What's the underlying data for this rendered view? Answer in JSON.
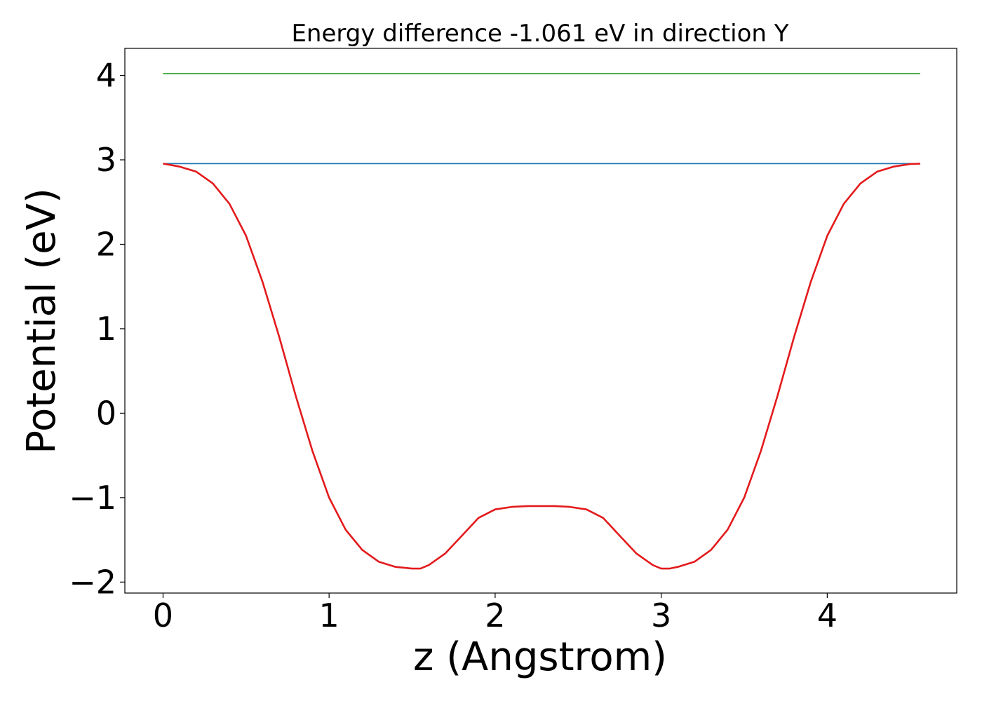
{
  "chart_data": {
    "type": "line",
    "title": "Energy difference -1.061 eV in direction Y",
    "xlabel": "z (Angstrom)",
    "ylabel": "Potential (eV)",
    "xlim": [
      -0.23,
      4.78
    ],
    "ylim": [
      -2.13,
      4.32
    ],
    "xticks": [
      0,
      1,
      2,
      3,
      4
    ],
    "xtick_labels": [
      "0",
      "1",
      "2",
      "3",
      "4"
    ],
    "yticks": [
      -2,
      -1,
      0,
      1,
      2,
      3,
      4
    ],
    "ytick_labels": [
      "−2",
      "−1",
      "0",
      "1",
      "2",
      "3",
      "4"
    ],
    "grid": false,
    "series": [
      {
        "color": "#2ca02c",
        "x": [
          0,
          4.56
        ],
        "y": [
          4.02,
          4.02
        ]
      },
      {
        "color": "#1f77b4",
        "x": [
          0,
          4.56
        ],
        "y": [
          2.955,
          2.955
        ]
      },
      {
        "color": "#e31a1c",
        "x": [
          0,
          0.1,
          0.2,
          0.3,
          0.4,
          0.5,
          0.6,
          0.7,
          0.8,
          0.9,
          1.0,
          1.1,
          1.2,
          1.3,
          1.4,
          1.5,
          1.55,
          1.6,
          1.7,
          1.8,
          1.9,
          2.0,
          2.1,
          2.2,
          2.28,
          2.36,
          2.45,
          2.55,
          2.65,
          2.75,
          2.85,
          2.95,
          3.0,
          3.05,
          3.1,
          3.2,
          3.3,
          3.4,
          3.5,
          3.6,
          3.7,
          3.8,
          3.9,
          4.0,
          4.1,
          4.2,
          4.3,
          4.4,
          4.5,
          4.56
        ],
        "y": [
          2.955,
          2.92,
          2.86,
          2.72,
          2.48,
          2.1,
          1.55,
          0.9,
          0.2,
          -0.45,
          -1.0,
          -1.38,
          -1.62,
          -1.76,
          -1.82,
          -1.84,
          -1.84,
          -1.8,
          -1.66,
          -1.45,
          -1.24,
          -1.14,
          -1.11,
          -1.1,
          -1.1,
          -1.1,
          -1.11,
          -1.14,
          -1.24,
          -1.45,
          -1.66,
          -1.8,
          -1.84,
          -1.84,
          -1.82,
          -1.76,
          -1.62,
          -1.38,
          -1.0,
          -0.45,
          0.2,
          0.9,
          1.55,
          2.1,
          2.48,
          2.72,
          2.86,
          2.92,
          2.95,
          2.955
        ]
      }
    ]
  }
}
